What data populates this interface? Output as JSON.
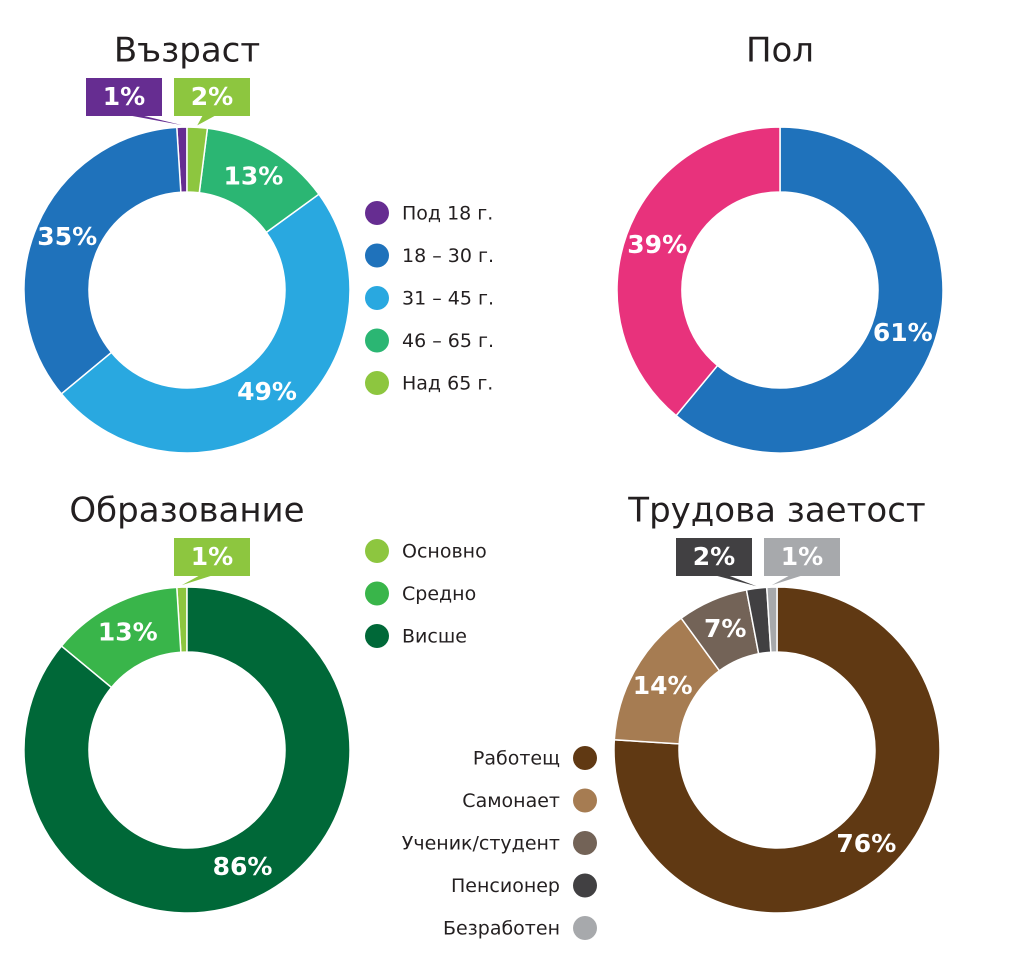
{
  "chart_data": [
    {
      "type": "donut",
      "title": "Възраст",
      "direction": "counterclockwise",
      "legend": "right",
      "categories": [
        "Под 18 г.",
        "18 – 30 г.",
        "31 – 45 г.",
        "46 – 65 г.",
        "Над 65 г."
      ],
      "values": [
        1,
        35,
        49,
        13,
        2
      ],
      "value_labels": [
        "1%",
        "35%",
        "49%",
        "13%",
        "2%"
      ],
      "colors": [
        "#662d91",
        "#1f72bb",
        "#29a8e0",
        "#2bb673",
        "#8dc63f"
      ]
    },
    {
      "type": "donut",
      "title": "Пол",
      "direction": "clockwise",
      "values": [
        61,
        39
      ],
      "value_labels": [
        "61%",
        "39%"
      ],
      "colors": [
        "#1f72bb",
        "#e8327c"
      ]
    },
    {
      "type": "donut",
      "title": "Образование",
      "direction": "counterclockwise",
      "legend": "top-right",
      "categories": [
        "Основно",
        "Средно",
        "Висше"
      ],
      "values": [
        1,
        13,
        86
      ],
      "value_labels": [
        "1%",
        "13%",
        "86%"
      ],
      "colors": [
        "#8dc63f",
        "#39b54a",
        "#006838"
      ]
    },
    {
      "type": "donut",
      "title": "Трудова заетост",
      "direction": "clockwise",
      "legend": "bottom-left",
      "categories": [
        "Работещ",
        "Самонает",
        "Ученик/студент",
        "Пенсионер",
        "Безработен"
      ],
      "values": [
        76,
        14,
        7,
        2,
        1
      ],
      "value_labels": [
        "76%",
        "14%",
        "7%",
        "2%",
        "1%"
      ],
      "colors": [
        "#603913",
        "#a67c52",
        "#736357",
        "#414042",
        "#a7a9ac"
      ]
    }
  ]
}
